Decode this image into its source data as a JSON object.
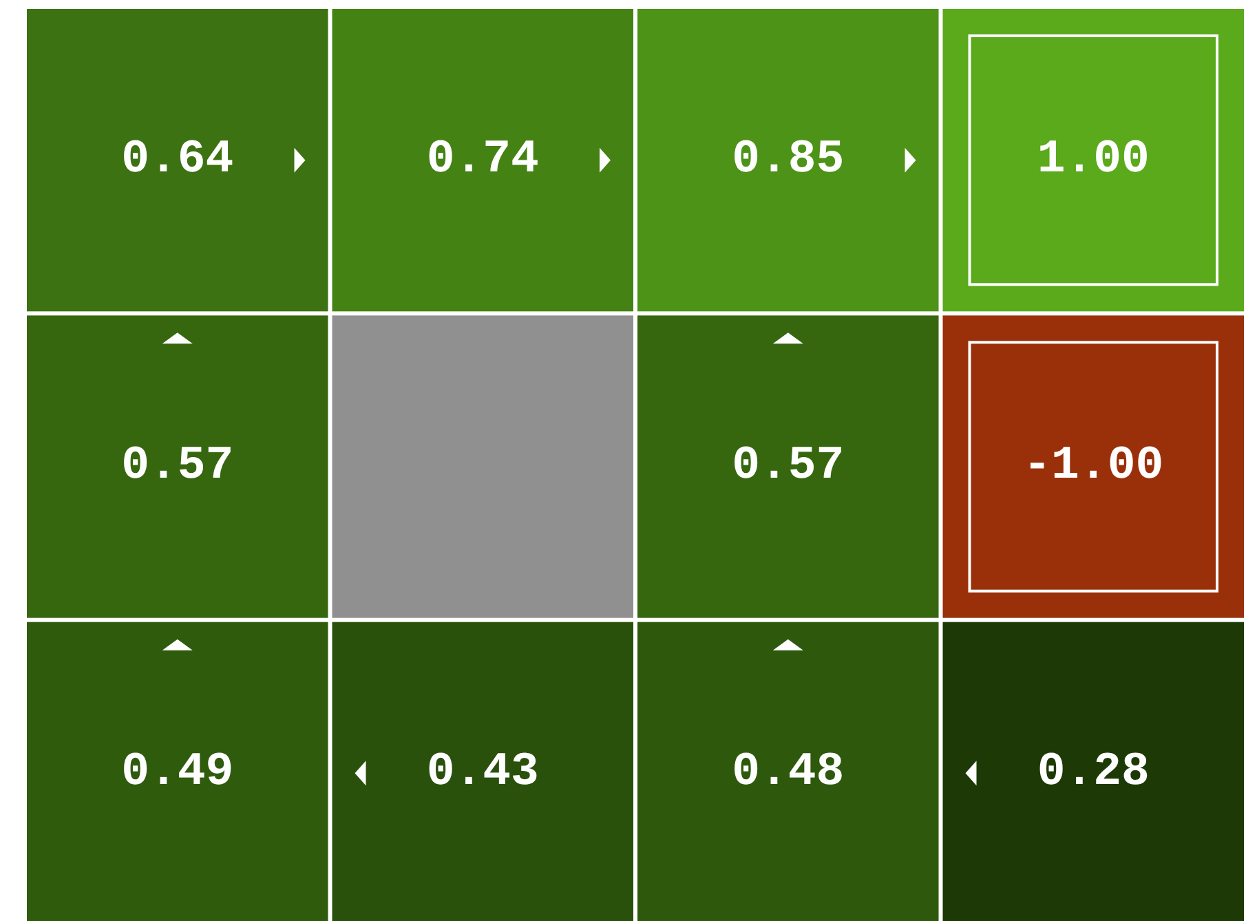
{
  "chart_data": {
    "type": "heatmap",
    "categories": [
      null,
      null,
      null,
      null
    ],
    "y_categories": [
      null,
      null,
      null
    ],
    "cells": [
      [
        0.64,
        0.74,
        0.85,
        1.0
      ],
      [
        0.57,
        null,
        0.57,
        -1.0
      ],
      [
        0.49,
        0.43,
        0.48,
        0.28
      ]
    ],
    "cell_labels": [
      [
        "0.64",
        "0.74",
        "0.85",
        "1.00"
      ],
      [
        "0.57",
        null,
        "0.57",
        "-1.00"
      ],
      [
        "0.49",
        "0.43",
        "0.48",
        "0.28"
      ]
    ]
  }
}
